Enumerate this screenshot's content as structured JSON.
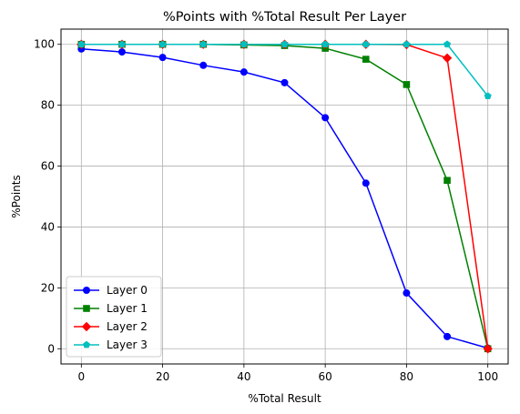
{
  "chart_data": {
    "type": "line",
    "title": "%Points with %Total Result Per Layer",
    "xlabel": "%Total Result",
    "ylabel": "%Points",
    "xlim": [
      -5,
      105
    ],
    "ylim": [
      -5,
      105
    ],
    "xticks": [
      0,
      20,
      40,
      60,
      80,
      100
    ],
    "yticks": [
      0,
      20,
      40,
      60,
      80,
      100
    ],
    "grid": true,
    "legend_position": "lower-left",
    "x": [
      0,
      10,
      20,
      30,
      40,
      50,
      60,
      70,
      80,
      90,
      100
    ],
    "series": [
      {
        "name": "Layer 0",
        "color": "#0000ff",
        "marker": "circle",
        "values": [
          98.5,
          97.5,
          95.7,
          93.1,
          90.9,
          87.4,
          75.9,
          54.4,
          18.3,
          4.0,
          0.2
        ]
      },
      {
        "name": "Layer 1",
        "color": "#008000",
        "marker": "square",
        "values": [
          100,
          100,
          100,
          100,
          99.8,
          99.6,
          98.7,
          95.1,
          86.8,
          55.3,
          0
        ]
      },
      {
        "name": "Layer 2",
        "color": "#ff0000",
        "marker": "diamond",
        "values": [
          100,
          100,
          100,
          100,
          100,
          100,
          100,
          100,
          99.9,
          95.5,
          0
        ]
      },
      {
        "name": "Layer 3",
        "color": "#00bfbf",
        "marker": "pentagon",
        "values": [
          100,
          100,
          100,
          100,
          100,
          100,
          100,
          100,
          100,
          100,
          83
        ]
      }
    ]
  }
}
